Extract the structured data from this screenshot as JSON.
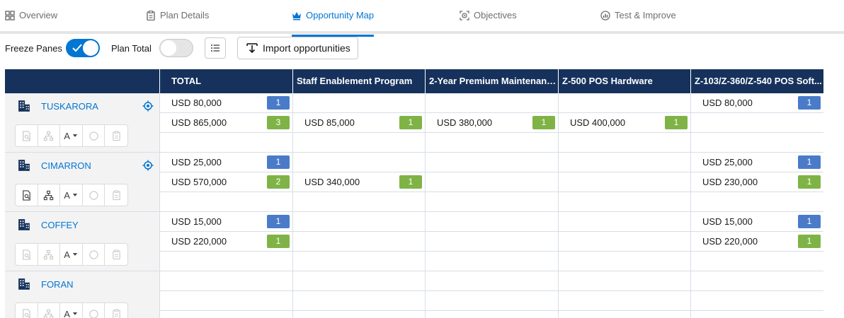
{
  "tabs": [
    {
      "label": "Overview",
      "icon": "grid-icon",
      "active": false
    },
    {
      "label": "Plan Details",
      "icon": "clipboard-icon",
      "active": false
    },
    {
      "label": "Opportunity Map",
      "icon": "crown-icon",
      "active": true
    },
    {
      "label": "Objectives",
      "icon": "target-icon",
      "active": false
    },
    {
      "label": "Test & Improve",
      "icon": "chart-gauge-icon",
      "active": false
    }
  ],
  "toolbar": {
    "freeze_label": "Freeze Panes",
    "freeze_on": true,
    "plan_total_label": "Plan Total",
    "plan_total_on": false,
    "import_label": "Import opportunities"
  },
  "columns": {
    "total": "TOTAL",
    "c1": "Staff Enablement Program",
    "c2": "2-Year Premium Maintenanc...",
    "c3": "Z-500 POS Hardware",
    "c4": "Z-103/Z-360/Z-540 POS Soft..."
  },
  "action_letter": "A",
  "accounts": [
    {
      "name": "TUSKARORA",
      "has_target": true,
      "rows": [
        {
          "total": "USD 80,000",
          "total_badge": "1",
          "c1": "",
          "c1_badge": "",
          "c2": "",
          "c2_badge": "",
          "c3": "",
          "c3_badge": "",
          "c4": "USD 80,000",
          "c4_badge": "1"
        },
        {
          "total": "USD 865,000",
          "total_badge": "3",
          "c1": "USD 85,000",
          "c1_badge": "1",
          "c2": "USD 380,000",
          "c2_badge": "1",
          "c3": "USD 400,000",
          "c3_badge": "1",
          "c4": "",
          "c4_badge": ""
        },
        {
          "total": "",
          "total_badge": "",
          "c1": "",
          "c1_badge": "",
          "c2": "",
          "c2_badge": "",
          "c3": "",
          "c3_badge": "",
          "c4": "",
          "c4_badge": ""
        }
      ]
    },
    {
      "name": "CIMARRON",
      "has_target": true,
      "rows": [
        {
          "total": "USD 25,000",
          "total_badge": "1",
          "c1": "",
          "c1_badge": "",
          "c2": "",
          "c2_badge": "",
          "c3": "",
          "c3_badge": "",
          "c4": "USD 25,000",
          "c4_badge": "1"
        },
        {
          "total": "USD 570,000",
          "total_badge": "2",
          "c1": "USD 340,000",
          "c1_badge": "1",
          "c2": "",
          "c2_badge": "",
          "c3": "",
          "c3_badge": "",
          "c4": "USD 230,000",
          "c4_badge": "1"
        },
        {
          "total": "",
          "total_badge": "",
          "c1": "",
          "c1_badge": "",
          "c2": "",
          "c2_badge": "",
          "c3": "",
          "c3_badge": "",
          "c4": "",
          "c4_badge": ""
        }
      ]
    },
    {
      "name": "COFFEY",
      "has_target": false,
      "rows": [
        {
          "total": "USD 15,000",
          "total_badge": "1",
          "c1": "",
          "c1_badge": "",
          "c2": "",
          "c2_badge": "",
          "c3": "",
          "c3_badge": "",
          "c4": "USD 15,000",
          "c4_badge": "1"
        },
        {
          "total": "USD 220,000",
          "total_badge": "1",
          "c1": "",
          "c1_badge": "",
          "c2": "",
          "c2_badge": "",
          "c3": "",
          "c3_badge": "",
          "c4": "USD 220,000",
          "c4_badge": "1"
        },
        {
          "total": "",
          "total_badge": "",
          "c1": "",
          "c1_badge": "",
          "c2": "",
          "c2_badge": "",
          "c3": "",
          "c3_badge": "",
          "c4": "",
          "c4_badge": ""
        }
      ]
    },
    {
      "name": "FORAN",
      "has_target": false,
      "rows": [
        {
          "total": "",
          "total_badge": "",
          "c1": "",
          "c1_badge": "",
          "c2": "",
          "c2_badge": "",
          "c3": "",
          "c3_badge": "",
          "c4": "",
          "c4_badge": ""
        },
        {
          "total": "",
          "total_badge": "",
          "c1": "",
          "c1_badge": "",
          "c2": "",
          "c2_badge": "",
          "c3": "",
          "c3_badge": "",
          "c4": "",
          "c4_badge": ""
        },
        {
          "total": "",
          "total_badge": "",
          "c1": "",
          "c1_badge": "",
          "c2": "",
          "c2_badge": "",
          "c3": "",
          "c3_badge": "",
          "c4": "",
          "c4_badge": ""
        }
      ]
    }
  ],
  "colors": {
    "header_bg": "#16325c",
    "accent": "#0176d3",
    "badge_row1": "#4a7bc9",
    "badge_row2": "#7fb346"
  }
}
